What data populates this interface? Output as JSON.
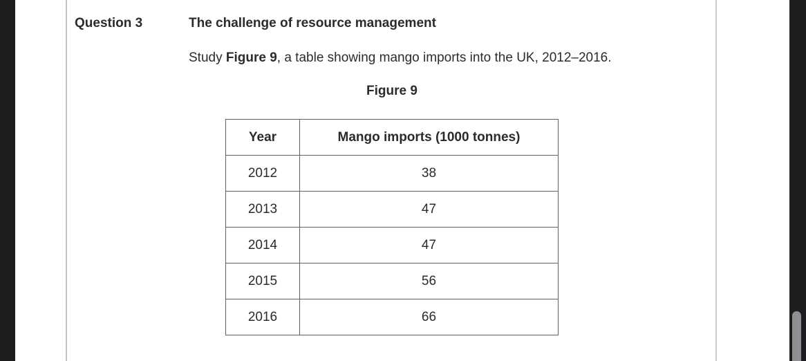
{
  "window": {
    "chrome_color": "#1d1e20",
    "scrollbar": {
      "track_color": "#1d1e20",
      "thumb_color": "#8f9094"
    },
    "page_edge_color": "#c6c6c6"
  },
  "document": {
    "question_label": "Question 3",
    "question_title": "The challenge of resource management",
    "instruction_prefix": "Study ",
    "instruction_figure_ref": "Figure 9",
    "instruction_suffix": ", a table showing mango imports into the UK, 2012–2016.",
    "figure_caption": "Figure 9",
    "text_color": "#2b2b2b",
    "table_border_color": "#606060"
  },
  "chart_data": {
    "type": "table",
    "title": "Figure 9",
    "columns": [
      "Year",
      "Mango imports (1000 tonnes)"
    ],
    "rows": [
      {
        "year": "2012",
        "imports": "38"
      },
      {
        "year": "2013",
        "imports": "47"
      },
      {
        "year": "2014",
        "imports": "47"
      },
      {
        "year": "2015",
        "imports": "56"
      },
      {
        "year": "2016",
        "imports": "66"
      }
    ],
    "units": "1000 tonnes",
    "x_range": [
      "2012",
      "2016"
    ]
  }
}
